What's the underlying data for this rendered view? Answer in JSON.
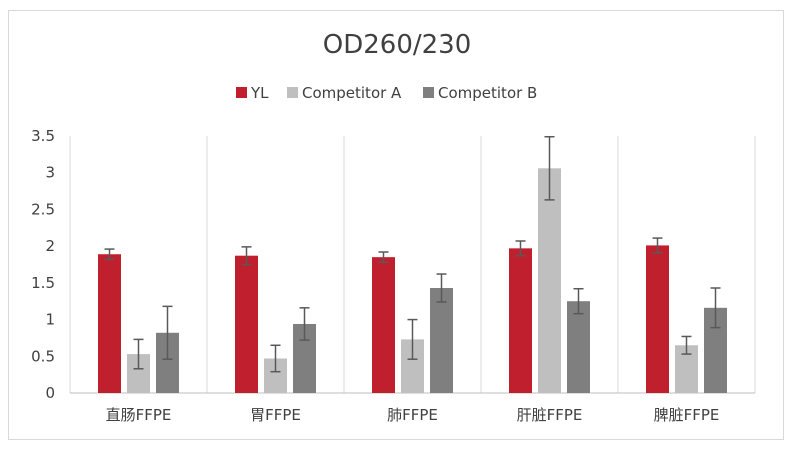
{
  "chart_data": {
    "type": "bar",
    "title": "OD260/230",
    "categories": [
      "直肠FFPE",
      "胃FFPE",
      "肺FFPE",
      "肝脏FFPE",
      "脾脏FFPE"
    ],
    "series": [
      {
        "name": "YL",
        "color": "#c0202e",
        "values": [
          1.89,
          1.87,
          1.85,
          1.97,
          2.01
        ],
        "errors": [
          0.07,
          0.12,
          0.07,
          0.1,
          0.1
        ]
      },
      {
        "name": "Competitor A",
        "color": "#bfbfbf",
        "values": [
          0.53,
          0.47,
          0.73,
          3.06,
          0.65
        ],
        "errors": [
          0.2,
          0.18,
          0.27,
          0.43,
          0.12
        ]
      },
      {
        "name": "Competitor B",
        "color": "#7f7f7f",
        "values": [
          0.82,
          0.94,
          1.43,
          1.25,
          1.16
        ],
        "errors": [
          0.36,
          0.22,
          0.19,
          0.17,
          0.27
        ]
      }
    ],
    "ylim": [
      0,
      3.5
    ],
    "yticks": [
      "0",
      "0.5",
      "1",
      "1.5",
      "2",
      "2.5",
      "3",
      "3.5"
    ],
    "xlabel": "",
    "ylabel": "",
    "legend_position": "top",
    "grid": "vertical category separators"
  }
}
